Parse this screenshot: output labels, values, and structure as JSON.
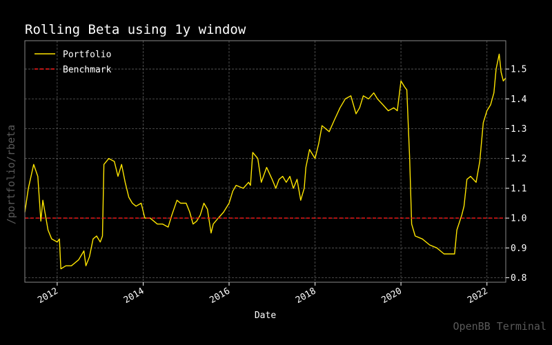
{
  "side_label": "/portfolio/rbeta",
  "watermark": "OpenBB Terminal",
  "colors": {
    "background": "#000000",
    "grid": "#5f5f5f",
    "portfolio": "#ffe600",
    "benchmark": "#ff1a1a",
    "text": "#ffffff",
    "muted": "#5a5a5a"
  },
  "chart_data": {
    "type": "line",
    "title": "Rolling Beta using 1y window",
    "xlabel": "Date",
    "ylabel": "",
    "x_axis": "date",
    "xlim": [
      "2011-04-01",
      "2022-06-10"
    ],
    "ylim": [
      0.785,
      1.595
    ],
    "x_ticks": [
      "2012",
      "2014",
      "2016",
      "2018",
      "2020",
      "2022"
    ],
    "y_ticks": [
      0.8,
      0.9,
      1.0,
      1.1,
      1.2,
      1.3,
      1.4,
      1.5
    ],
    "grid": true,
    "legend_position": "top-left",
    "series": [
      {
        "name": "Portfolio",
        "style": "solid",
        "points": [
          [
            "2011-04-01",
            1.02
          ],
          [
            "2011-05-01",
            1.1
          ],
          [
            "2011-06-15",
            1.18
          ],
          [
            "2011-07-20",
            1.14
          ],
          [
            "2011-08-15",
            0.99
          ],
          [
            "2011-09-01",
            1.06
          ],
          [
            "2011-10-15",
            0.96
          ],
          [
            "2011-11-15",
            0.93
          ],
          [
            "2012-01-01",
            0.92
          ],
          [
            "2012-01-20",
            0.93
          ],
          [
            "2012-02-01",
            0.83
          ],
          [
            "2012-03-15",
            0.84
          ],
          [
            "2012-05-01",
            0.84
          ],
          [
            "2012-07-01",
            0.86
          ],
          [
            "2012-08-15",
            0.89
          ],
          [
            "2012-09-01",
            0.84
          ],
          [
            "2012-10-01",
            0.87
          ],
          [
            "2012-11-01",
            0.93
          ],
          [
            "2012-12-01",
            0.94
          ],
          [
            "2013-01-01",
            0.92
          ],
          [
            "2013-01-20",
            0.94
          ],
          [
            "2013-02-01",
            1.18
          ],
          [
            "2013-03-15",
            1.2
          ],
          [
            "2013-05-01",
            1.19
          ],
          [
            "2013-06-01",
            1.14
          ],
          [
            "2013-07-01",
            1.18
          ],
          [
            "2013-08-01",
            1.12
          ],
          [
            "2013-09-01",
            1.07
          ],
          [
            "2013-10-01",
            1.05
          ],
          [
            "2013-11-01",
            1.04
          ],
          [
            "2013-12-15",
            1.05
          ],
          [
            "2014-01-15",
            1.0
          ],
          [
            "2014-03-01",
            1.0
          ],
          [
            "2014-05-01",
            0.98
          ],
          [
            "2014-06-15",
            0.98
          ],
          [
            "2014-08-01",
            0.97
          ],
          [
            "2014-09-01",
            1.01
          ],
          [
            "2014-10-15",
            1.06
          ],
          [
            "2014-11-15",
            1.05
          ],
          [
            "2015-01-01",
            1.05
          ],
          [
            "2015-02-01",
            1.02
          ],
          [
            "2015-03-01",
            0.98
          ],
          [
            "2015-04-01",
            0.99
          ],
          [
            "2015-05-01",
            1.01
          ],
          [
            "2015-06-01",
            1.05
          ],
          [
            "2015-07-01",
            1.03
          ],
          [
            "2015-08-01",
            0.95
          ],
          [
            "2015-08-20",
            0.98
          ],
          [
            "2015-10-01",
            1.0
          ],
          [
            "2015-11-15",
            1.02
          ],
          [
            "2016-01-01",
            1.05
          ],
          [
            "2016-02-01",
            1.09
          ],
          [
            "2016-03-01",
            1.11
          ],
          [
            "2016-05-01",
            1.1
          ],
          [
            "2016-06-15",
            1.12
          ],
          [
            "2016-07-01",
            1.11
          ],
          [
            "2016-07-20",
            1.22
          ],
          [
            "2016-09-01",
            1.2
          ],
          [
            "2016-10-01",
            1.12
          ],
          [
            "2016-11-15",
            1.17
          ],
          [
            "2017-01-01",
            1.13
          ],
          [
            "2017-02-01",
            1.1
          ],
          [
            "2017-03-01",
            1.13
          ],
          [
            "2017-04-01",
            1.14
          ],
          [
            "2017-05-01",
            1.12
          ],
          [
            "2017-06-01",
            1.14
          ],
          [
            "2017-07-01",
            1.1
          ],
          [
            "2017-08-01",
            1.13
          ],
          [
            "2017-09-01",
            1.06
          ],
          [
            "2017-10-01",
            1.1
          ],
          [
            "2017-10-15",
            1.17
          ],
          [
            "2017-11-15",
            1.23
          ],
          [
            "2018-01-01",
            1.2
          ],
          [
            "2018-02-01",
            1.25
          ],
          [
            "2018-03-01",
            1.31
          ],
          [
            "2018-05-01",
            1.29
          ],
          [
            "2018-06-15",
            1.33
          ],
          [
            "2018-08-01",
            1.37
          ],
          [
            "2018-09-15",
            1.4
          ],
          [
            "2018-11-01",
            1.41
          ],
          [
            "2018-12-15",
            1.35
          ],
          [
            "2019-01-15",
            1.37
          ],
          [
            "2019-02-15",
            1.41
          ],
          [
            "2019-04-01",
            1.4
          ],
          [
            "2019-05-15",
            1.42
          ],
          [
            "2019-06-15",
            1.4
          ],
          [
            "2019-08-01",
            1.38
          ],
          [
            "2019-09-15",
            1.36
          ],
          [
            "2019-11-01",
            1.37
          ],
          [
            "2019-12-01",
            1.36
          ],
          [
            "2020-01-01",
            1.46
          ],
          [
            "2020-02-01",
            1.44
          ],
          [
            "2020-02-20",
            1.43
          ],
          [
            "2020-03-15",
            1.2
          ],
          [
            "2020-04-01",
            0.98
          ],
          [
            "2020-05-01",
            0.94
          ],
          [
            "2020-07-01",
            0.93
          ],
          [
            "2020-09-01",
            0.91
          ],
          [
            "2020-11-01",
            0.9
          ],
          [
            "2021-01-01",
            0.88
          ],
          [
            "2021-03-01",
            0.88
          ],
          [
            "2021-04-01",
            0.88
          ],
          [
            "2021-04-20",
            0.96
          ],
          [
            "2021-06-01",
            1.01
          ],
          [
            "2021-06-20",
            1.04
          ],
          [
            "2021-07-15",
            1.13
          ],
          [
            "2021-08-15",
            1.14
          ],
          [
            "2021-10-01",
            1.12
          ],
          [
            "2021-11-01",
            1.19
          ],
          [
            "2021-12-01",
            1.32
          ],
          [
            "2022-01-01",
            1.36
          ],
          [
            "2022-02-01",
            1.38
          ],
          [
            "2022-03-01",
            1.42
          ],
          [
            "2022-03-20",
            1.5
          ],
          [
            "2022-04-15",
            1.55
          ],
          [
            "2022-05-01",
            1.49
          ],
          [
            "2022-05-20",
            1.46
          ],
          [
            "2022-06-10",
            1.47
          ]
        ]
      },
      {
        "name": "Benchmark",
        "style": "dashed",
        "points": [
          [
            "2011-04-01",
            1.0
          ],
          [
            "2022-06-10",
            1.0
          ]
        ]
      }
    ]
  }
}
